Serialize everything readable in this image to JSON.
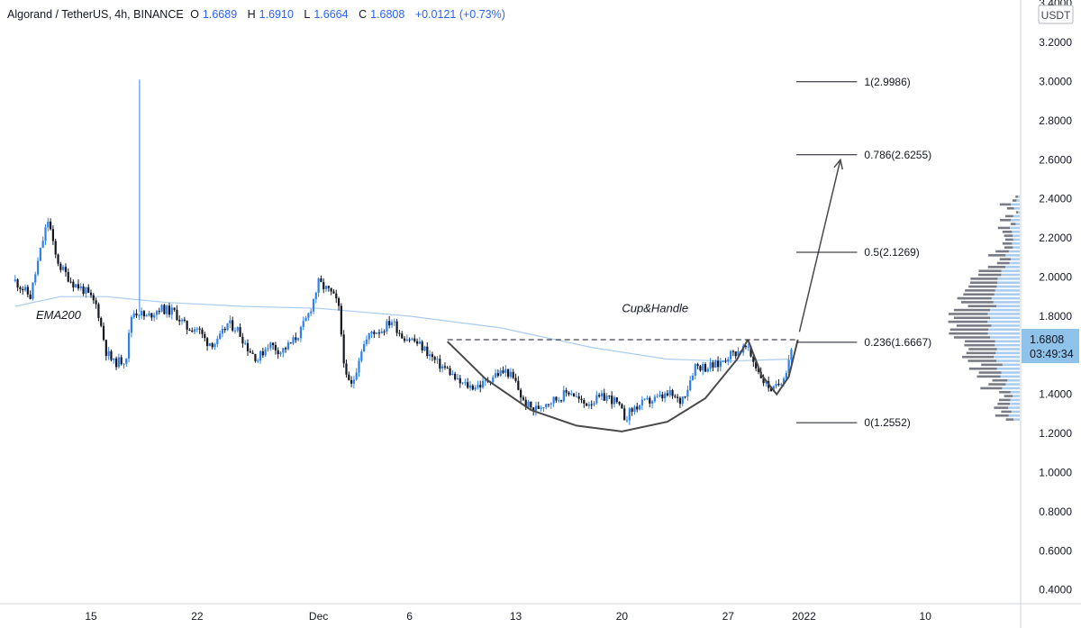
{
  "header": {
    "symbol": "Algorand / TetherUS, 4h, BINANCE",
    "open_label": "O",
    "open": "1.6689",
    "high_label": "H",
    "high": "1.6910",
    "low_label": "L",
    "low": "1.6664",
    "close_label": "C",
    "close": "1.6808",
    "change": "+0.0121 (+0.73%)"
  },
  "currency_badge": "USDT",
  "price_tag": {
    "price": "1.6808",
    "countdown": "03:49:34"
  },
  "chart_data": {
    "type": "candlestick",
    "symbol": "ALGO/USDT",
    "interval": "4h",
    "y_axis": {
      "range": [
        0.3,
        3.45
      ],
      "ticks": [
        "0.4000",
        "0.6000",
        "0.8000",
        "1.0000",
        "1.2000",
        "1.4000",
        "1.6000",
        "1.8000",
        "2.0000",
        "2.2000",
        "2.4000",
        "2.6000",
        "2.8000",
        "3.0000",
        "3.2000",
        "3.4000"
      ]
    },
    "x_axis": {
      "ticks": [
        {
          "label": "15",
          "day": 15
        },
        {
          "label": "22",
          "day": 22
        },
        {
          "label": "Dec",
          "day": 30
        },
        {
          "label": "6",
          "day": 36
        },
        {
          "label": "13",
          "day": 43
        },
        {
          "label": "20",
          "day": 50
        },
        {
          "label": "27",
          "day": 57
        },
        {
          "label": "2022",
          "day": 62
        },
        {
          "label": "10",
          "day": 70
        }
      ]
    },
    "price_path": [
      [
        10,
        1.98
      ],
      [
        11,
        1.9
      ],
      [
        11.8,
        2.18
      ],
      [
        12.2,
        2.3
      ],
      [
        12.6,
        2.12
      ],
      [
        13,
        2.05
      ],
      [
        13.8,
        1.97
      ],
      [
        14.6,
        1.93
      ],
      [
        15.4,
        1.85
      ],
      [
        16,
        1.62
      ],
      [
        16.5,
        1.56
      ],
      [
        17.3,
        1.58
      ],
      [
        17.7,
        1.82
      ],
      [
        18.2,
        1.82
      ],
      [
        18.6,
        1.79
      ],
      [
        19.5,
        1.84
      ],
      [
        20.5,
        1.82
      ],
      [
        21.3,
        1.74
      ],
      [
        22,
        1.74
      ],
      [
        22.6,
        1.67
      ],
      [
        23.3,
        1.66
      ],
      [
        24,
        1.76
      ],
      [
        24.6,
        1.74
      ],
      [
        25.4,
        1.63
      ],
      [
        26,
        1.58
      ],
      [
        26.7,
        1.66
      ],
      [
        27.5,
        1.62
      ],
      [
        28.2,
        1.66
      ],
      [
        28.8,
        1.72
      ],
      [
        29.4,
        1.82
      ],
      [
        30,
        1.97
      ],
      [
        30.8,
        1.92
      ],
      [
        31.3,
        1.86
      ],
      [
        31.8,
        1.48
      ],
      [
        32.2,
        1.44
      ],
      [
        32.8,
        1.63
      ],
      [
        33.5,
        1.72
      ],
      [
        34.2,
        1.73
      ],
      [
        34.8,
        1.78
      ],
      [
        35.5,
        1.7
      ],
      [
        36.2,
        1.68
      ],
      [
        37,
        1.63
      ],
      [
        37.8,
        1.56
      ],
      [
        38.6,
        1.52
      ],
      [
        39.2,
        1.46
      ],
      [
        40,
        1.44
      ],
      [
        40.8,
        1.45
      ],
      [
        41.6,
        1.5
      ],
      [
        42.4,
        1.52
      ],
      [
        43,
        1.46
      ],
      [
        43.5,
        1.36
      ],
      [
        44.2,
        1.32
      ],
      [
        45,
        1.36
      ],
      [
        45.8,
        1.38
      ],
      [
        46.6,
        1.42
      ],
      [
        47.4,
        1.35
      ],
      [
        48.2,
        1.37
      ],
      [
        49,
        1.39
      ],
      [
        49.6,
        1.36
      ],
      [
        50.2,
        1.28
      ],
      [
        50.8,
        1.33
      ],
      [
        51.6,
        1.36
      ],
      [
        52.4,
        1.38
      ],
      [
        53.2,
        1.4
      ],
      [
        53.8,
        1.36
      ],
      [
        54.3,
        1.43
      ],
      [
        54.8,
        1.55
      ],
      [
        55.5,
        1.54
      ],
      [
        56.3,
        1.55
      ],
      [
        57,
        1.6
      ],
      [
        57.6,
        1.62
      ],
      [
        58.2,
        1.64
      ],
      [
        58.8,
        1.55
      ],
      [
        59.4,
        1.46
      ],
      [
        60,
        1.42
      ],
      [
        60.4,
        1.46
      ],
      [
        60.8,
        1.52
      ],
      [
        61.3,
        1.68
      ]
    ],
    "ema200": {
      "label": "EMA200",
      "points": [
        [
          10,
          1.85
        ],
        [
          13,
          1.9
        ],
        [
          16,
          1.9
        ],
        [
          20,
          1.87
        ],
        [
          25,
          1.85
        ],
        [
          30,
          1.84
        ],
        [
          36,
          1.8
        ],
        [
          42,
          1.74
        ],
        [
          48,
          1.64
        ],
        [
          53,
          1.58
        ],
        [
          57,
          1.57
        ],
        [
          61,
          1.58
        ]
      ]
    },
    "fibonacci": {
      "levels": [
        {
          "ratio": 0,
          "price": 1.2552,
          "label": "0(1.2552)"
        },
        {
          "ratio": 0.236,
          "price": 1.6667,
          "label": "0.236(1.6667)"
        },
        {
          "ratio": 0.5,
          "price": 2.1269,
          "label": "0.5(2.1269)"
        },
        {
          "ratio": 0.786,
          "price": 2.6255,
          "label": "0.786(2.6255)"
        },
        {
          "ratio": 1,
          "price": 2.9986,
          "label": "1(2.9986)"
        }
      ],
      "x_range": [
        61.5,
        65.5
      ]
    },
    "pattern": {
      "label": "Cup&Handle",
      "cup": [
        [
          38.5,
          1.67
        ],
        [
          41,
          1.48
        ],
        [
          44,
          1.32
        ],
        [
          47,
          1.24
        ],
        [
          50,
          1.21
        ],
        [
          53,
          1.26
        ],
        [
          55.5,
          1.38
        ],
        [
          57.6,
          1.58
        ],
        [
          58.3,
          1.68
        ]
      ],
      "handle": [
        [
          58.3,
          1.68
        ],
        [
          59.2,
          1.5
        ],
        [
          60.2,
          1.4
        ],
        [
          61,
          1.49
        ],
        [
          61.6,
          1.68
        ]
      ],
      "neckline": {
        "price": 1.68,
        "from": 38.5,
        "to": 61.6
      },
      "projection": {
        "from": [
          61.7,
          1.72
        ],
        "to": [
          64.4,
          2.6
        ]
      }
    },
    "spike": {
      "day": 18.2,
      "high": 3.01,
      "low": 1.82
    },
    "volume_profile_range": [
      1.27,
      2.43
    ],
    "grid": false,
    "legend": "none"
  }
}
